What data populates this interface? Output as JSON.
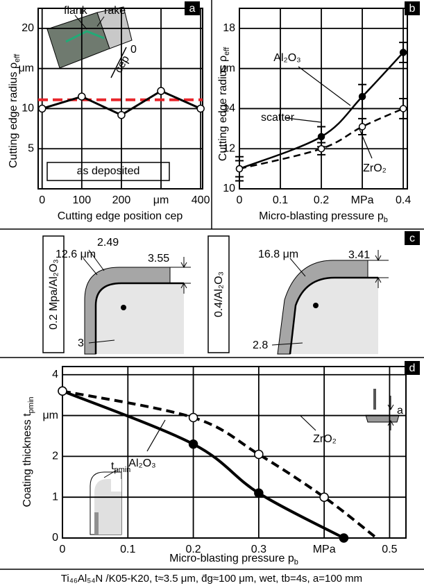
{
  "chart_data": [
    {
      "panel": "a",
      "type": "line",
      "x_label": "Cutting edge position cep",
      "y_label": "Cutting edge radius ρ",
      "y_label_sub": "eff",
      "x": [
        0,
        100,
        200,
        300,
        400
      ],
      "series": [
        {
          "values": [
            10,
            11.5,
            9.2,
            12.2,
            10
          ],
          "color": "#000000",
          "line_style": "solid",
          "marker_fill": "#ffffff"
        }
      ],
      "xlim": [
        -10,
        405
      ],
      "ylim": [
        0,
        22.5
      ],
      "xticks": [
        0,
        100,
        200,
        {
          "value": 300,
          "label": "μm"
        },
        400
      ],
      "yticks": [
        5,
        10,
        {
          "value": 15,
          "label": "μm"
        },
        20
      ],
      "grid": true,
      "smooth": false,
      "reference_line": {
        "value": 11.1,
        "color": "#e8262b",
        "line_style": "dashed"
      },
      "annotations": [
        "as deposited",
        "flank",
        "rake",
        "0",
        "cep"
      ]
    },
    {
      "panel": "b",
      "type": "line",
      "x_label": "Micro-blasting pressure p",
      "x_label_sub": "b",
      "y_label": "Cutting edge radius ρ",
      "y_label_sub": "eff",
      "x": [
        0,
        0.2,
        0.3,
        0.4
      ],
      "series": [
        {
          "name": "Al₂O₃",
          "values": [
            11,
            12.6,
            14.6,
            16.8
          ],
          "errors": [
            0.6,
            0.5,
            0.6,
            0.5
          ],
          "color": "#000000",
          "line_style": "solid",
          "marker_fill": "#000000"
        },
        {
          "name": "ZrO₂",
          "values": [
            11,
            12,
            13.1,
            14
          ],
          "errors": [
            0.4,
            0.3,
            0.4,
            0.5
          ],
          "color": "#000000",
          "line_style": "dashed",
          "marker_fill": "#ffffff"
        }
      ],
      "xlim": [
        0,
        0.41
      ],
      "ylim": [
        10,
        19
      ],
      "xticks": [
        0,
        0.1,
        0.2,
        {
          "value": 0.3,
          "label": "MPa"
        },
        0.4
      ],
      "yticks": [
        10,
        12,
        14,
        {
          "value": 16,
          "label": "μm"
        },
        18
      ],
      "grid": true,
      "smooth": true,
      "annotations": [
        "scatter"
      ]
    },
    {
      "panel": "d",
      "type": "line",
      "x_label": "Micro-blasting pressure p",
      "x_label_sub": "b",
      "y_label": "Coating thickness t",
      "y_label_sub": "pmin",
      "series": [
        {
          "name": "Al₂O₃",
          "x": [
            0,
            0.2,
            0.3,
            0.43
          ],
          "values": [
            3.6,
            2.3,
            1.1,
            0
          ],
          "markers": [
            true,
            true,
            true,
            true
          ],
          "color": "#000000",
          "line_style": "solid",
          "marker_fill": "#000000"
        },
        {
          "name": "ZrO₂",
          "x": [
            0,
            0.2,
            0.3,
            0.4,
            0.48
          ],
          "values": [
            3.6,
            2.95,
            2.05,
            1.0,
            0
          ],
          "markers": [
            true,
            true,
            true,
            true,
            false
          ],
          "color": "#000000",
          "line_style": "dashed",
          "marker_fill": "#ffffff"
        }
      ],
      "xlim": [
        0,
        0.525
      ],
      "ylim": [
        0,
        4.2
      ],
      "xticks": [
        0,
        0.1,
        0.2,
        0.3,
        {
          "value": 0.4,
          "label": "MPa"
        },
        0.5
      ],
      "yticks": [
        0,
        1,
        2,
        {
          "value": 3,
          "label": "μm"
        },
        4
      ],
      "grid": true,
      "smooth": true,
      "annotations": [
        {
          "text": "t",
          "sub": "pmin"
        },
        "a"
      ]
    }
  ],
  "panel_c": {
    "panel": "c",
    "left": {
      "label": "0.2 Mpa/Al₂O₃",
      "radius": "12.6 μm",
      "dims": [
        2.49,
        3.55,
        3
      ]
    },
    "right": {
      "label": "0.4/Al₂O₃",
      "radius": "16.8 μm",
      "dims": [
        3.41,
        2.8
      ]
    }
  },
  "caption": "Ti₄₆Al₅₄N /K05-K20, t≈3.5 μm, d̄g≈100 μm, wet, tb=4s, a=100 mm"
}
